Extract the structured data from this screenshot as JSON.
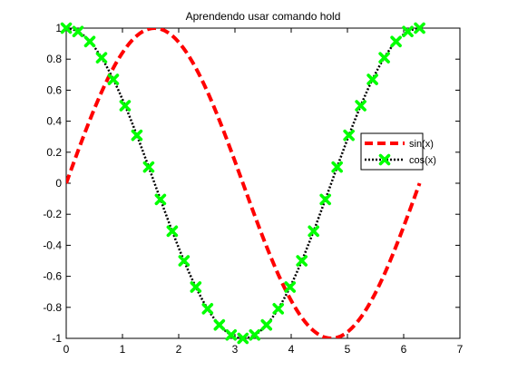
{
  "chart_data": {
    "type": "line",
    "title": "Aprendendo usar comando hold",
    "xlabel": "",
    "ylabel": "",
    "xlim": [
      0,
      7
    ],
    "ylim": [
      -1,
      1
    ],
    "xticks": [
      "0",
      "1",
      "2",
      "3",
      "4",
      "5",
      "6",
      "7"
    ],
    "yticks": [
      "1",
      "0.8",
      "0.6",
      "0.4",
      "0.2",
      "0",
      "-0.2",
      "-0.4",
      "-0.6",
      "-0.8",
      "-1"
    ],
    "grid": false,
    "legend_position": "right",
    "series": [
      {
        "name": "sin(x)",
        "style": "dashed",
        "marker": "none",
        "color": "#ff0000",
        "x": [
          0,
          0.2094,
          0.4189,
          0.6283,
          0.8378,
          1.0472,
          1.2566,
          1.4661,
          1.6755,
          1.885,
          2.0944,
          2.3038,
          2.5133,
          2.7227,
          2.9322,
          3.1416,
          3.351,
          3.5605,
          3.7699,
          3.9794,
          4.1888,
          4.3982,
          4.6077,
          4.8171,
          5.0265,
          5.236,
          5.4454,
          5.6549,
          5.8643,
          6.0737,
          6.2832
        ],
        "y": [
          0,
          0.2079,
          0.4067,
          0.5878,
          0.7431,
          0.866,
          0.9511,
          0.9945,
          0.9945,
          0.9511,
          0.866,
          0.7431,
          0.5878,
          0.4067,
          0.2079,
          0,
          -0.2079,
          -0.4067,
          -0.5878,
          -0.7431,
          -0.866,
          -0.9511,
          -0.9945,
          -0.9945,
          -0.9511,
          -0.866,
          -0.7431,
          -0.5878,
          -0.4067,
          -0.2079,
          0
        ]
      },
      {
        "name": "cos(x)",
        "style": "dotted",
        "marker": "x",
        "color": "#000000",
        "marker_color": "#00ff00",
        "x": [
          0,
          0.2094,
          0.4189,
          0.6283,
          0.8378,
          1.0472,
          1.2566,
          1.4661,
          1.6755,
          1.885,
          2.0944,
          2.3038,
          2.5133,
          2.7227,
          2.9322,
          3.1416,
          3.351,
          3.5605,
          3.7699,
          3.9794,
          4.1888,
          4.3982,
          4.6077,
          4.8171,
          5.0265,
          5.236,
          5.4454,
          5.6549,
          5.8643,
          6.0737,
          6.2832
        ],
        "y": [
          1,
          0.9781,
          0.9135,
          0.809,
          0.6691,
          0.5,
          0.309,
          0.1045,
          -0.1045,
          -0.309,
          -0.5,
          -0.6691,
          -0.809,
          -0.9135,
          -0.9781,
          -1,
          -0.9781,
          -0.9135,
          -0.809,
          -0.6691,
          -0.5,
          -0.309,
          -0.1045,
          0.1045,
          0.309,
          0.5,
          0.6691,
          0.809,
          0.9135,
          0.9781,
          1
        ]
      }
    ]
  }
}
